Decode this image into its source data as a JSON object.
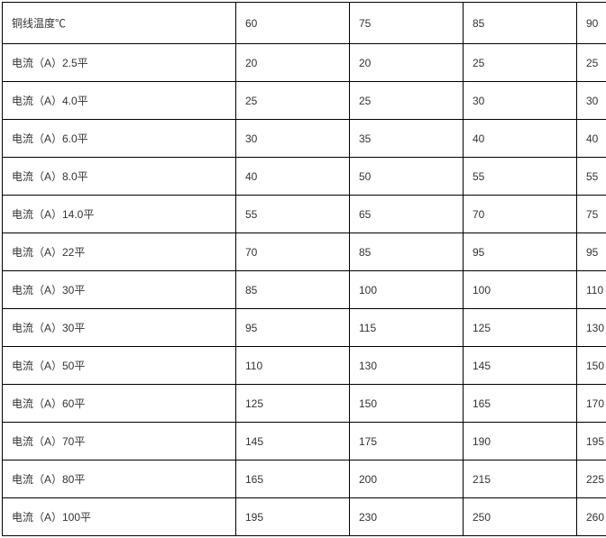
{
  "table": {
    "type": "table",
    "border_color": "#000000",
    "background_color": "#ffffff",
    "text_color": "#333333",
    "font_size": 12,
    "columns": [
      "铜线温度℃",
      "60",
      "75",
      "85",
      "90"
    ],
    "rows": [
      [
        "电流（A）2.5平",
        "20",
        "20",
        "25",
        "25"
      ],
      [
        "电流（A）4.0平",
        "25",
        "25",
        "30",
        "30"
      ],
      [
        "电流（A）6.0平",
        "30",
        "35",
        "40",
        "40"
      ],
      [
        "电流（A）8.0平",
        "40",
        "50",
        "55",
        "55"
      ],
      [
        "电流（A）14.0平",
        "55",
        "65",
        "70",
        "75"
      ],
      [
        "电流（A）22平",
        "70",
        "85",
        "95",
        "95"
      ],
      [
        "电流（A）30平",
        "85",
        "100",
        "100",
        "110"
      ],
      [
        "电流（A）30平",
        "95",
        "115",
        "125",
        "130"
      ],
      [
        "电流（A）50平",
        "110",
        "130",
        "145",
        "150"
      ],
      [
        "电流（A）60平",
        "125",
        "150",
        "165",
        "170"
      ],
      [
        "电流（A）70平",
        "145",
        "175",
        "190",
        "195"
      ],
      [
        "电流（A）80平",
        "165",
        "200",
        "215",
        "225"
      ],
      [
        "电流（A）100平",
        "195",
        "230",
        "250",
        "260"
      ]
    ]
  }
}
